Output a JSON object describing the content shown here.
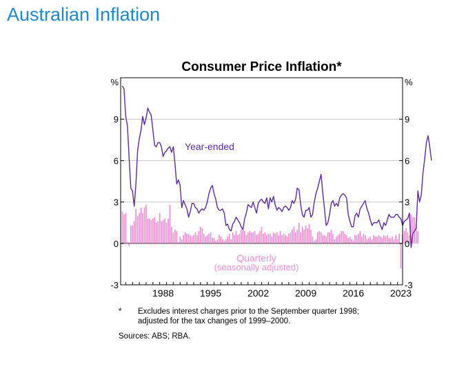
{
  "page": {
    "heading": "Australian Inflation"
  },
  "chart_data": {
    "type": "bar+line",
    "title": "Consumer Price Inflation*",
    "left_unit": "%",
    "right_unit": "%",
    "ylim": [
      -3,
      12
    ],
    "yticks": [
      -3,
      0,
      3,
      6,
      9
    ],
    "x_range": [
      1982.25,
      2023.75
    ],
    "xticks": [
      1988,
      1995,
      2002,
      2009,
      2016,
      2023
    ],
    "grid": true,
    "colors": {
      "line": "#5b2a9c",
      "bars": "#ef8fd3",
      "grid": "#c4c4c4"
    },
    "series": [
      {
        "name": "Year-ended",
        "label": "Year-ended",
        "type": "line",
        "x_start": 1982.5,
        "x_step": 0.25,
        "values": [
          11.4,
          11.2,
          9.2,
          8.5,
          6.2,
          4.0,
          3.8,
          2.7,
          4.3,
          6.7,
          7.6,
          8.2,
          9.2,
          8.6,
          9.1,
          9.8,
          9.5,
          9.3,
          8.2,
          7.1,
          7.0,
          7.3,
          7.3,
          7.0,
          6.3,
          6.6,
          6.7,
          6.9,
          7.0,
          6.6,
          7.0,
          5.8,
          4.3,
          4.6,
          4.2,
          2.6,
          3.1,
          2.8,
          2.5,
          1.9,
          2.3,
          2.9,
          2.9,
          2.6,
          2.5,
          2.2,
          2.4,
          2.5,
          2.4,
          2.6,
          3.0,
          3.6,
          4.0,
          4.2,
          3.6,
          3.2,
          2.6,
          2.4,
          2.4,
          2.5,
          2.2,
          1.3,
          1.4,
          1.0,
          0.9,
          1.4,
          1.6,
          1.9,
          1.7,
          1.5,
          1.2,
          1.0,
          1.8,
          2.2,
          2.8,
          2.7,
          2.6,
          3.0,
          2.6,
          2.2,
          2.9,
          3.1,
          3.2,
          3.0,
          2.9,
          3.3,
          2.5,
          3.3,
          3.0,
          3.4,
          2.8,
          2.4,
          2.6,
          2.5,
          2.3,
          2.6,
          2.7,
          2.6,
          2.4,
          2.6,
          3.1,
          2.9,
          3.2,
          4.0,
          3.9,
          2.8,
          2.1,
          1.9,
          2.4,
          2.4,
          2.6,
          1.9,
          2.1,
          3.0,
          3.6,
          4.0,
          4.5,
          5.0,
          3.7,
          2.5,
          1.3,
          1.5,
          2.1,
          2.9,
          3.1,
          2.7,
          2.9,
          2.7,
          3.3,
          3.5,
          3.6,
          3.5,
          3.3,
          2.1,
          1.6,
          1.2,
          1.2,
          2.0,
          2.2,
          1.9,
          2.5,
          2.7,
          2.9,
          3.1,
          2.5,
          2.2,
          1.7,
          1.3,
          1.5,
          1.5,
          1.5,
          1.7,
          1.3,
          1.0,
          1.5,
          1.3,
          1.7,
          2.1,
          1.9,
          1.9,
          1.9,
          2.1,
          2.1,
          1.9,
          1.8,
          1.3,
          1.6,
          1.7,
          1.8,
          2.2,
          -0.3,
          0.7,
          0.9,
          1.1,
          3.8,
          3.0,
          3.5,
          5.1,
          6.1,
          7.3,
          7.8,
          7.0,
          6.0
        ]
      },
      {
        "name": "Quarterly",
        "label": "Quarterly",
        "sublabel": "(seasonally adjusted)",
        "type": "bar",
        "x_start": 1982.5,
        "x_step": 0.25,
        "values": [
          2.3,
          2.1,
          2.2,
          0.1,
          -0.2,
          1.3,
          1.3,
          1.6,
          2.5,
          2.0,
          2.2,
          2.6,
          2.2,
          2.6,
          2.8,
          1.8,
          1.8,
          1.7,
          1.8,
          1.9,
          1.5,
          1.6,
          2.2,
          1.6,
          1.7,
          1.8,
          1.5,
          1.8,
          2.8,
          1.2,
          0.8,
          1.0,
          0.9,
          0.1,
          0.5,
          0.3,
          0.6,
          0.8,
          0.7,
          0.7,
          0.6,
          0.5,
          0.6,
          0.8,
          0.6,
          0.9,
          1.2,
          1.1,
          0.7,
          0.5,
          0.6,
          0.7,
          0.8,
          0.4,
          0.4,
          0.2,
          0.3,
          0.6,
          0.5,
          0.3,
          0.2,
          0.3,
          0.5,
          0.7,
          0.3,
          0.8,
          0.6,
          0.9,
          0.6,
          0.7,
          1.0,
          1.1,
          0.9,
          0.6,
          0.8,
          0.9,
          0.8,
          0.8,
          0.9,
          0.6,
          0.7,
          0.9,
          1.2,
          0.7,
          0.8,
          0.6,
          0.7,
          0.7,
          0.5,
          0.8,
          0.7,
          0.8,
          0.6,
          0.9,
          0.6,
          0.7,
          0.6,
          0.5,
          0.7,
          0.8,
          1.0,
          1.2,
          0.8,
          1.0,
          1.5,
          0.8,
          1.2,
          1.0,
          1.3,
          1.1,
          1.4,
          1.0,
          0.5,
          0.2,
          0.3,
          0.8,
          0.9,
          0.8,
          0.6,
          0.6,
          0.5,
          0.8,
          0.8,
          1.0,
          0.7,
          0.3,
          0.5,
          0.6,
          0.7,
          0.9,
          0.9,
          0.7,
          0.6,
          0.4,
          0.5,
          0.3,
          0.2,
          0.6,
          0.6,
          0.7,
          0.9,
          0.5,
          0.7,
          0.6,
          0.3,
          0.4,
          0.5,
          0.3,
          0.6,
          0.5,
          0.5,
          0.6,
          0.5,
          0.4,
          0.6,
          0.5,
          0.6,
          0.4,
          0.4,
          0.5,
          0.3,
          0.6,
          0.3,
          0.7,
          -1.8,
          0.6,
          0.9,
          1.1,
          0.8,
          0.6,
          2.1,
          1.9,
          1.9,
          1.4,
          0.9
        ]
      }
    ]
  },
  "footnote": {
    "marker": "*",
    "text": "Excludes interest charges prior to the September quarter 1998; adjusted for the tax changes of 1999–2000."
  },
  "sources": "Sources: ABS; RBA."
}
